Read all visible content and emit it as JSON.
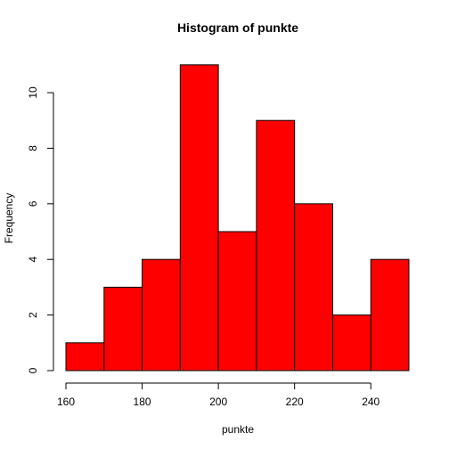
{
  "chart_data": {
    "type": "bar",
    "subtype": "histogram",
    "title": "Histogram of punkte",
    "xlabel": "punkte",
    "ylabel": "Frequency",
    "bins": [
      {
        "from": 160,
        "to": 170,
        "count": 1
      },
      {
        "from": 170,
        "to": 180,
        "count": 3
      },
      {
        "from": 180,
        "to": 190,
        "count": 4
      },
      {
        "from": 190,
        "to": 200,
        "count": 11
      },
      {
        "from": 200,
        "to": 210,
        "count": 5
      },
      {
        "from": 210,
        "to": 220,
        "count": 9
      },
      {
        "from": 220,
        "to": 230,
        "count": 6
      },
      {
        "from": 230,
        "to": 240,
        "count": 2
      },
      {
        "from": 240,
        "to": 250,
        "count": 4
      }
    ],
    "xlim": [
      160,
      250
    ],
    "ylim": [
      0,
      11
    ],
    "xticks": [
      160,
      180,
      200,
      220,
      240
    ],
    "yticks": [
      0,
      2,
      4,
      6,
      8,
      10
    ],
    "bar_color": "#ff0000",
    "grid": false,
    "legend": "none"
  }
}
